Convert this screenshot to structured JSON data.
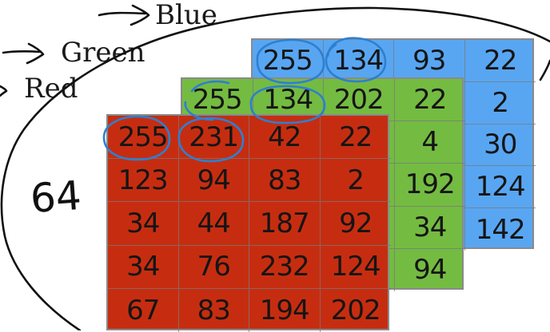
{
  "labels": {
    "blue": "Blue",
    "green": "Green",
    "red": "Red"
  },
  "handwritten_note": "64",
  "colors": {
    "blue": "#58a6f2",
    "green": "#74bb42",
    "red": "#c62d10",
    "ink_black": "#111111",
    "ink_blue": "#2e7fd0"
  },
  "channels": {
    "blue": {
      "rows": [
        [
          "255",
          "134",
          "93",
          "22"
        ],
        [
          "",
          "",
          "",
          "2"
        ],
        [
          "",
          "",
          "",
          "30"
        ],
        [
          "",
          "",
          "",
          "124"
        ],
        [
          "",
          "",
          "",
          "142"
        ]
      ]
    },
    "green": {
      "rows": [
        [
          "255",
          "134",
          "202",
          "22"
        ],
        [
          "",
          "",
          "",
          "4"
        ],
        [
          "",
          "",
          "",
          "192"
        ],
        [
          "",
          "",
          "",
          "34"
        ],
        [
          "",
          "",
          "",
          "94"
        ]
      ]
    },
    "red": {
      "rows": [
        [
          "255",
          "231",
          "42",
          "22"
        ],
        [
          "123",
          "94",
          "83",
          "2"
        ],
        [
          "34",
          "44",
          "187",
          "92"
        ],
        [
          "34",
          "76",
          "232",
          "124"
        ],
        [
          "67",
          "83",
          "194",
          "202"
        ]
      ]
    }
  }
}
